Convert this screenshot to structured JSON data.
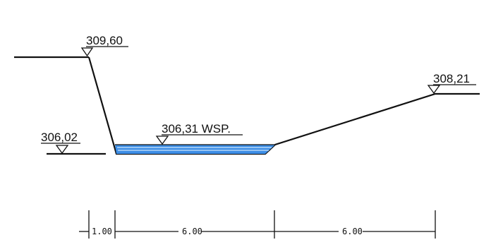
{
  "elevations": {
    "left_bank_top": "309,60",
    "left_ground": "306,02",
    "water_surface": "306,31 WSP.",
    "right_bank_top": "308,21"
  },
  "dimensions": {
    "segment_1": "1.00",
    "segment_2": "6.00",
    "segment_3": "6.00"
  },
  "colors": {
    "line": "#111111",
    "water_fill": "#3d8ee6",
    "water_hatch": "#cfe6fb"
  }
}
